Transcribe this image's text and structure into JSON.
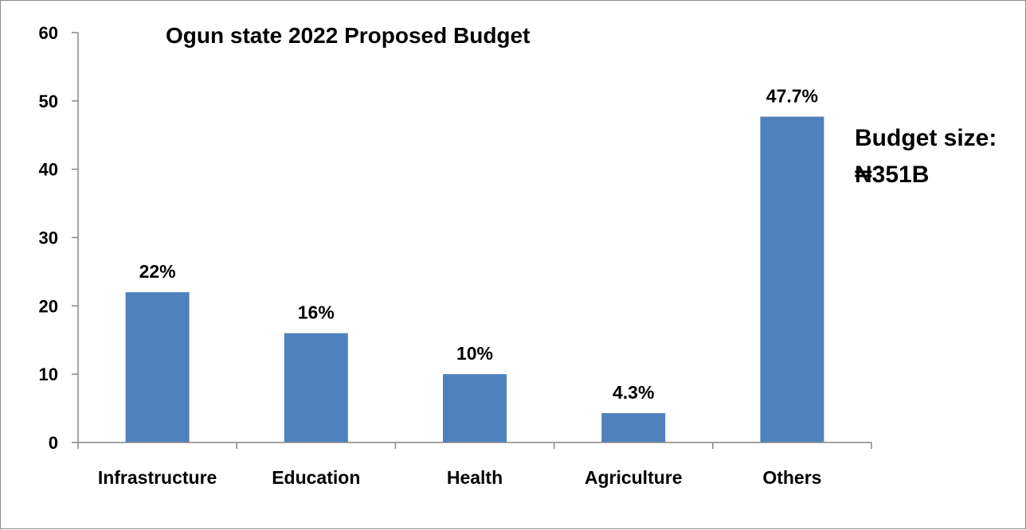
{
  "chart_data": {
    "type": "bar",
    "title": "Ogun state 2022 Proposed Budget",
    "categories": [
      "Infrastructure",
      "Education",
      "Health",
      "Agriculture",
      "Others"
    ],
    "values": [
      22,
      16,
      10,
      4.3,
      47.7
    ],
    "data_labels": [
      "22%",
      "16%",
      "10%",
      "4.3%",
      "47.7%"
    ],
    "yticks": [
      0,
      10,
      20,
      30,
      40,
      50,
      60
    ],
    "ylim": [
      0,
      60
    ],
    "xlabel": "",
    "ylabel": "",
    "grid": false,
    "legend": "none",
    "bar_color": "#4f81bd",
    "annotation": {
      "line1": "Budget size:",
      "line2": "₦351B"
    }
  }
}
